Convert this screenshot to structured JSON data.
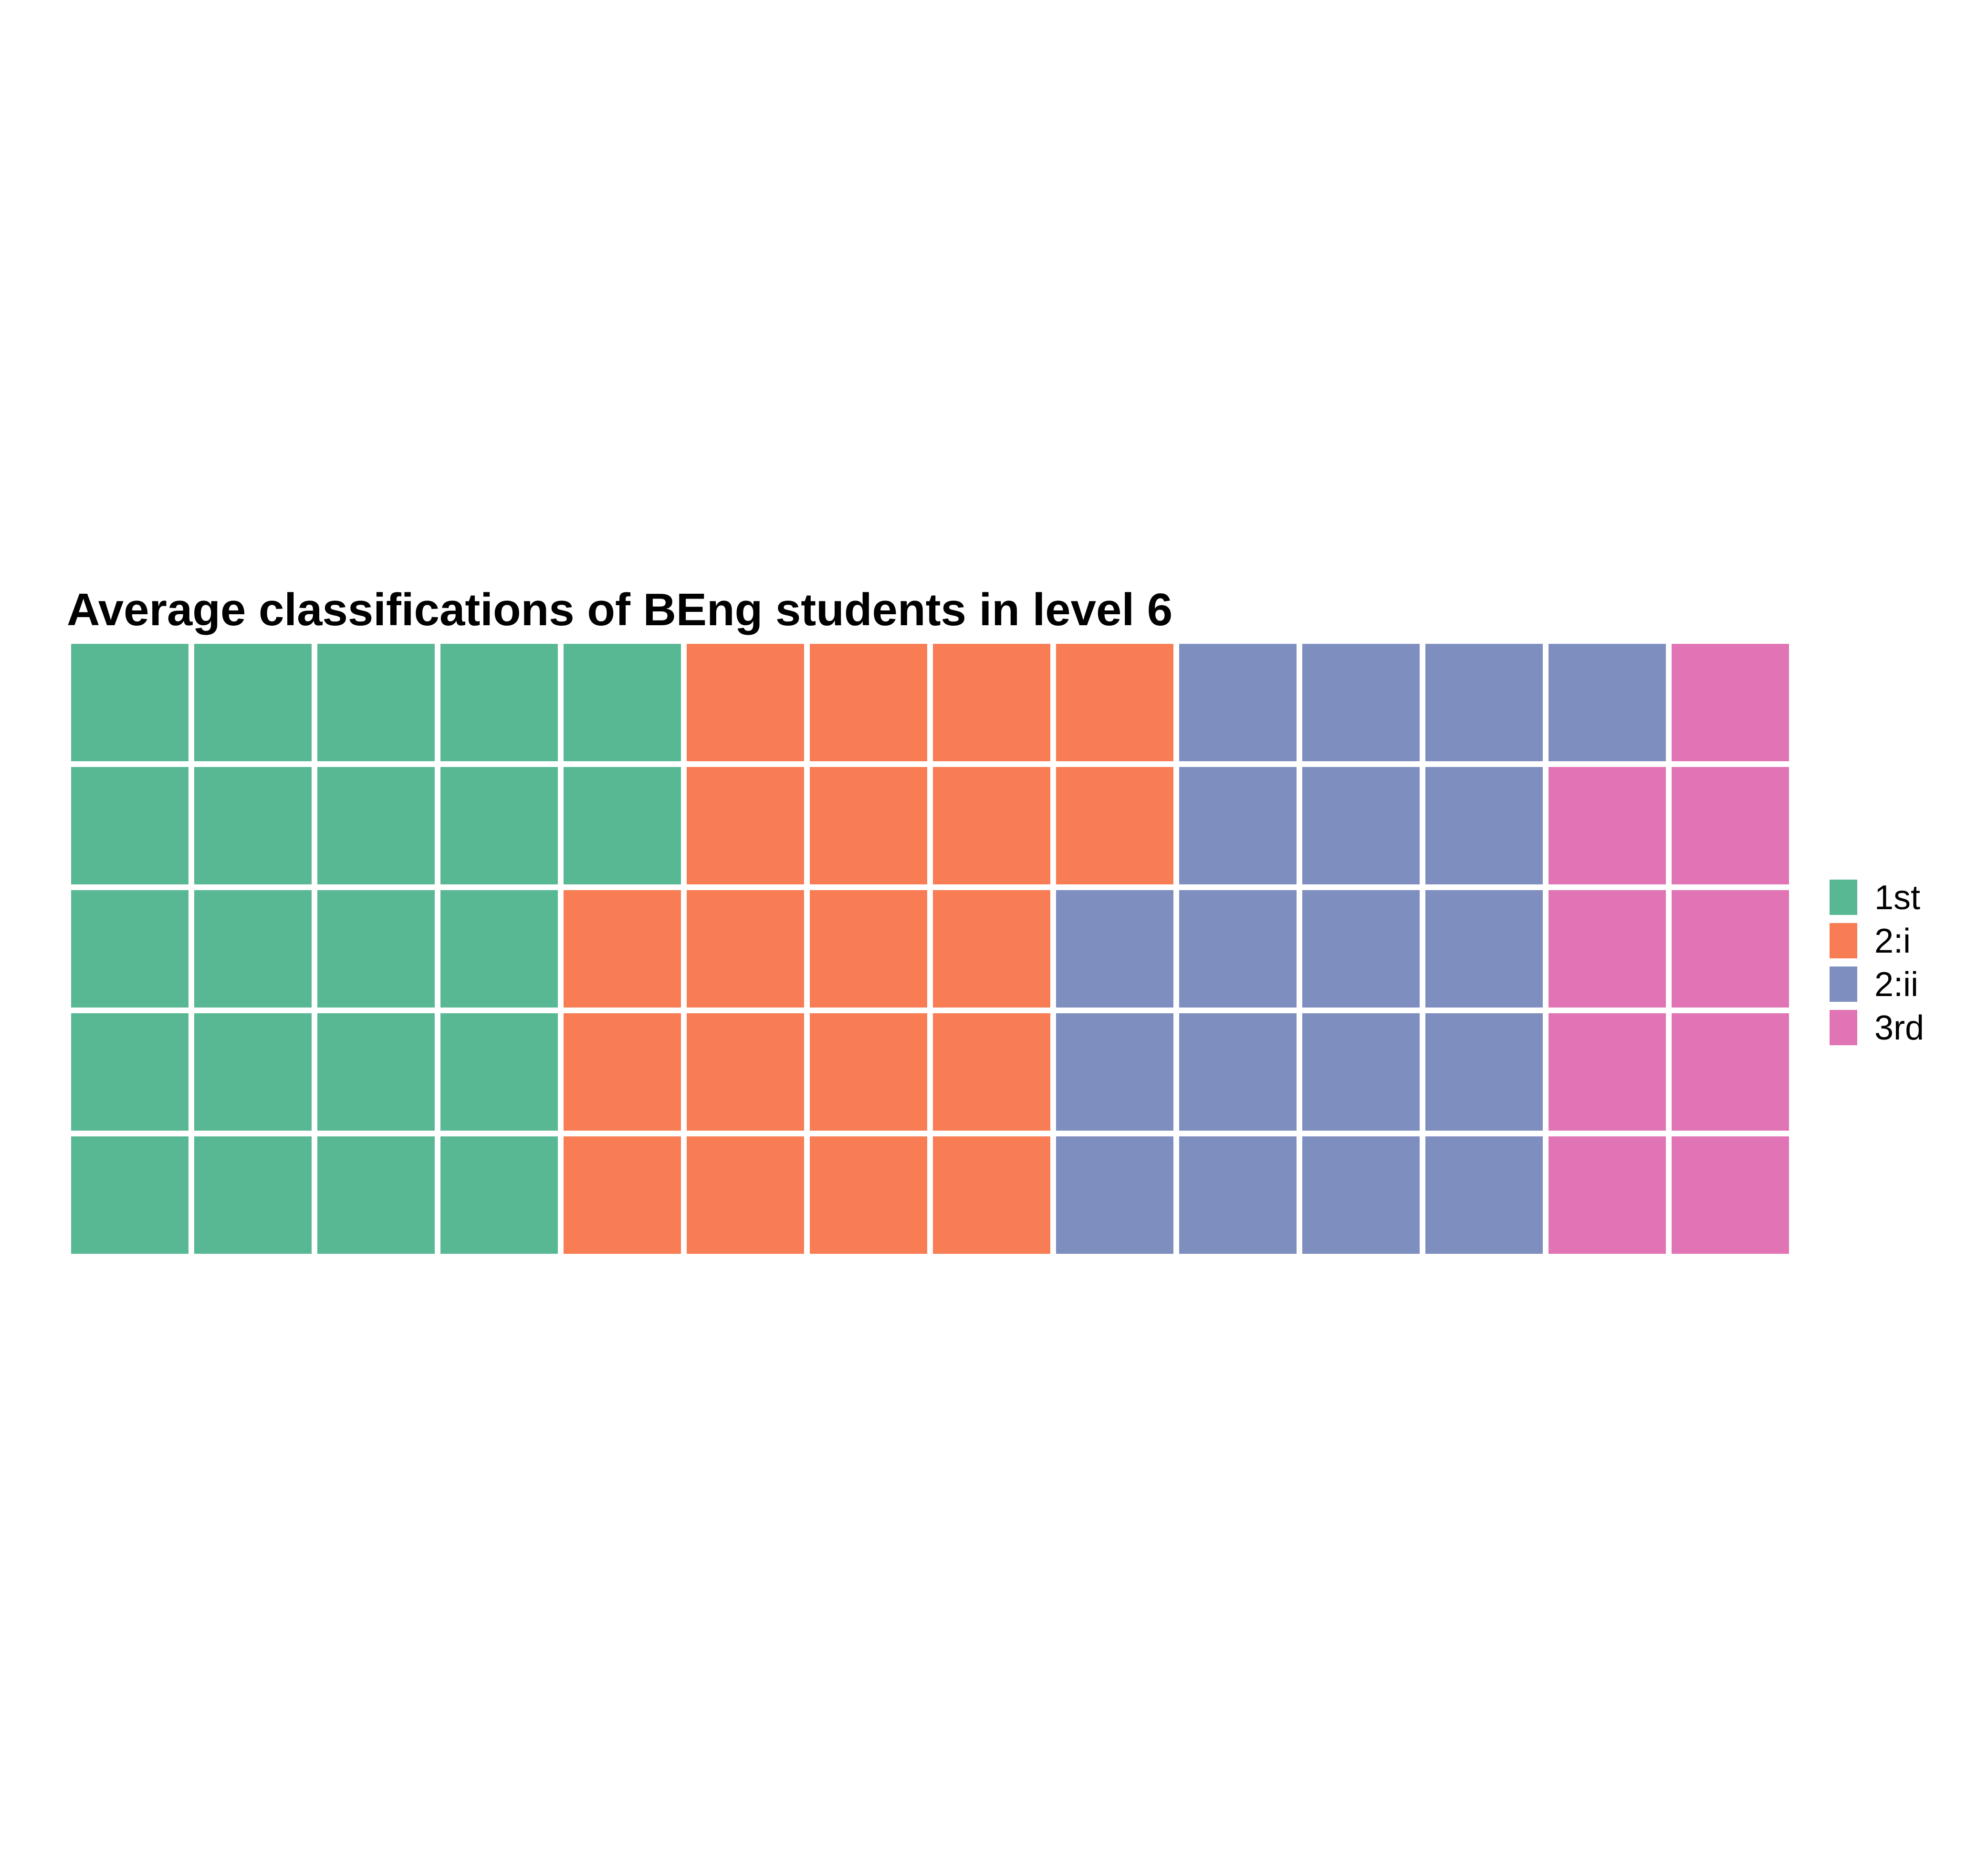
{
  "chart_data": {
    "type": "waffle",
    "title": "Average classifications of BEng students in level 6",
    "rows": 5,
    "columns": 14,
    "fill_order": "column-major",
    "categories": [
      "1st",
      "2:i",
      "2:ii",
      "3rd"
    ],
    "values": [
      22,
      20,
      19,
      9
    ],
    "colors": {
      "1st": "#59b894",
      "2:i": "#f87c54",
      "2:ii": "#7e8ebf",
      "3rd": "#e074b4"
    },
    "legend": {
      "position": "right",
      "entries": [
        "1st",
        "2:i",
        "2:ii",
        "3rd"
      ]
    }
  }
}
